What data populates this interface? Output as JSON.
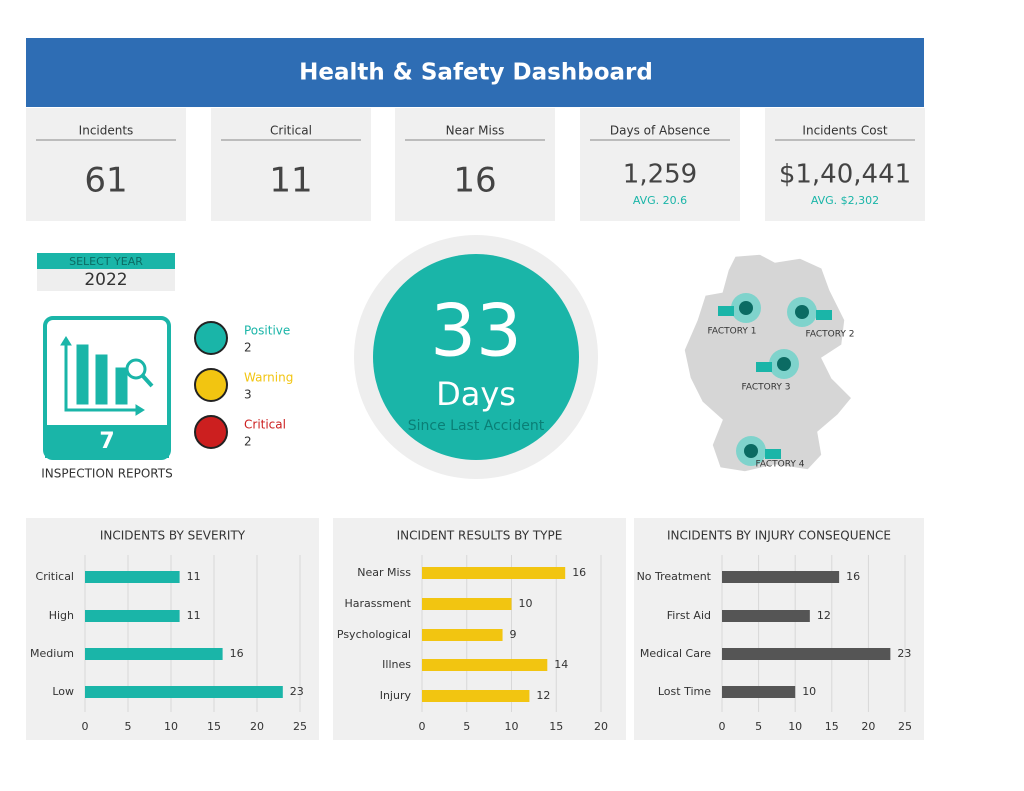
{
  "title": "Health & Safety Dashboard",
  "kpis": [
    {
      "label": "Incidents",
      "value": "61"
    },
    {
      "label": "Critical",
      "value": "11"
    },
    {
      "label": "Near Miss",
      "value": "16"
    },
    {
      "label": "Days of Absence",
      "value": "1,259",
      "sub": "AVG. 20.6"
    },
    {
      "label": "Incidents Cost",
      "value": "$1,40,441",
      "sub": "AVG. $2,302"
    }
  ],
  "year": {
    "label": "SELECT YEAR",
    "value": "2022"
  },
  "inspection": {
    "count": "7",
    "label": "INSPECTION REPORTS"
  },
  "statuses": [
    {
      "name": "Positive",
      "count": "2",
      "color": "#1ab5a8"
    },
    {
      "name": "Warning",
      "count": "3",
      "color": "#f2c511"
    },
    {
      "name": "Critical",
      "count": "2",
      "color": "#cc1f1f"
    }
  ],
  "days": {
    "value": "33",
    "unit": "Days",
    "caption": "Since Last Accident"
  },
  "factories": [
    "FACTORY 1",
    "FACTORY 2",
    "FACTORY 3",
    "FACTORY 4"
  ],
  "chart_data": [
    {
      "type": "hbar",
      "title": "INCIDENTS BY SEVERITY",
      "categories": [
        "Critical",
        "High",
        "Medium",
        "Low"
      ],
      "values": [
        11,
        11,
        16,
        23
      ],
      "color": "#1ab5a8",
      "xlim": [
        0,
        25
      ],
      "xticks": [
        0,
        5,
        10,
        15,
        20,
        25
      ],
      "grid": true
    },
    {
      "type": "hbar",
      "title": "INCIDENT RESULTS BY TYPE",
      "categories": [
        "Near Miss",
        "Harassment",
        "Psychological",
        "Illnes",
        "Injury"
      ],
      "values": [
        16,
        10,
        9,
        14,
        12
      ],
      "color": "#f2c511",
      "xlim": [
        0,
        20
      ],
      "xticks": [
        0,
        5,
        10,
        15,
        20
      ],
      "grid": true
    },
    {
      "type": "hbar",
      "title": "INCIDENTS BY INJURY CONSEQUENCE",
      "categories": [
        "No Treatment",
        "First Aid",
        "Medical Care",
        "Lost Time"
      ],
      "values": [
        16,
        12,
        23,
        10
      ],
      "color": "#555555",
      "xlim": [
        0,
        25
      ],
      "xticks": [
        0,
        5,
        10,
        15,
        20,
        25
      ],
      "grid": true
    }
  ]
}
